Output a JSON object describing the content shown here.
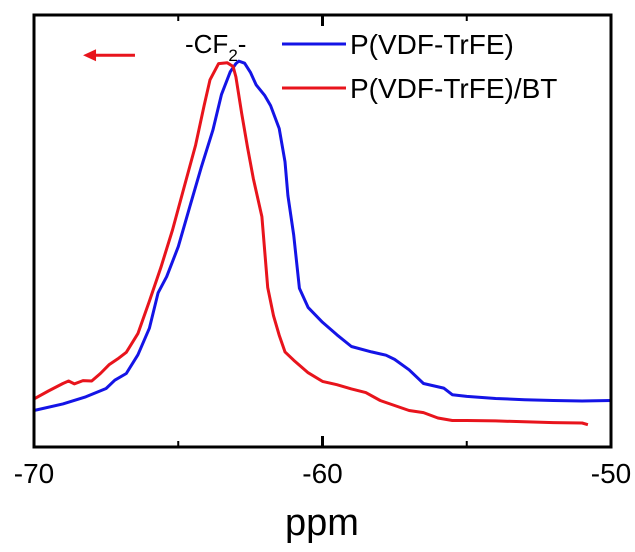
{
  "chart_data": {
    "type": "line",
    "title": "",
    "xlabel": "ppm",
    "ylabel": "",
    "xlim": [
      -70,
      -50
    ],
    "ylim": [
      0,
      1
    ],
    "xticks": [
      -70,
      -60,
      -50
    ],
    "xtick_labels": [
      "-70",
      "-60",
      "-50"
    ],
    "grid": false,
    "legend_position": "top-right",
    "annotation": {
      "text_main": "-CF",
      "text_sub": "2",
      "text_tail": "-",
      "arrow_color": "#e8141c",
      "arrow_from_x": -66.5,
      "arrow_to_x": -68.3,
      "arrow_y": 0.896
    },
    "series": [
      {
        "name": "P(VDF-TrFE)",
        "color": "#1414e6",
        "x": [
          -70.0,
          -69.0,
          -68.2,
          -67.5,
          -67.2,
          -66.8,
          -66.4,
          -66.0,
          -65.7,
          -65.4,
          -65.0,
          -64.6,
          -64.2,
          -63.8,
          -63.5,
          -63.2,
          -63.0,
          -62.9,
          -62.7,
          -62.5,
          -62.3,
          -62.0,
          -61.8,
          -61.5,
          -61.3,
          -61.2,
          -61.0,
          -60.8,
          -60.5,
          -60.0,
          -59.5,
          -59.0,
          -58.3,
          -57.8,
          -57.5,
          -57.0,
          -56.5,
          -55.8,
          -55.5,
          -55.0,
          -54.0,
          -53.0,
          -52.0,
          -51.0,
          -50.0
        ],
        "values": [
          0.042,
          0.058,
          0.075,
          0.095,
          0.115,
          0.131,
          0.176,
          0.24,
          0.325,
          0.364,
          0.436,
          0.532,
          0.627,
          0.716,
          0.802,
          0.856,
          0.876,
          0.882,
          0.877,
          0.855,
          0.825,
          0.799,
          0.775,
          0.72,
          0.64,
          0.559,
          0.464,
          0.336,
          0.29,
          0.254,
          0.224,
          0.196,
          0.183,
          0.175,
          0.165,
          0.14,
          0.107,
          0.096,
          0.08,
          0.076,
          0.071,
          0.068,
          0.066,
          0.065,
          0.066
        ]
      },
      {
        "name": "P(VDF-TrFE)/BT",
        "color": "#e8141c",
        "x": [
          -70.0,
          -69.5,
          -69.0,
          -68.8,
          -68.6,
          -68.3,
          -68.0,
          -67.7,
          -67.4,
          -67.1,
          -66.8,
          -66.4,
          -66.0,
          -65.6,
          -65.2,
          -64.8,
          -64.4,
          -64.1,
          -63.9,
          -63.6,
          -63.3,
          -63.1,
          -63.0,
          -62.8,
          -62.6,
          -62.4,
          -62.1,
          -61.9,
          -61.7,
          -61.5,
          -61.3,
          -61.0,
          -60.5,
          -60.0,
          -59.5,
          -59.0,
          -58.5,
          -58.0,
          -57.5,
          -57.0,
          -56.5,
          -56.0,
          -55.5,
          -55.0,
          -54.0,
          -53.0,
          -52.0,
          -51.0,
          -50.8
        ],
        "values": [
          0.07,
          0.089,
          0.107,
          0.113,
          0.106,
          0.114,
          0.113,
          0.131,
          0.152,
          0.166,
          0.182,
          0.227,
          0.305,
          0.386,
          0.476,
          0.578,
          0.68,
          0.776,
          0.837,
          0.876,
          0.878,
          0.869,
          0.844,
          0.756,
          0.675,
          0.6,
          0.508,
          0.338,
          0.27,
          0.223,
          0.183,
          0.163,
          0.133,
          0.112,
          0.104,
          0.094,
          0.085,
          0.066,
          0.054,
          0.042,
          0.037,
          0.024,
          0.018,
          0.018,
          0.017,
          0.015,
          0.013,
          0.012,
          0.008
        ]
      }
    ]
  }
}
